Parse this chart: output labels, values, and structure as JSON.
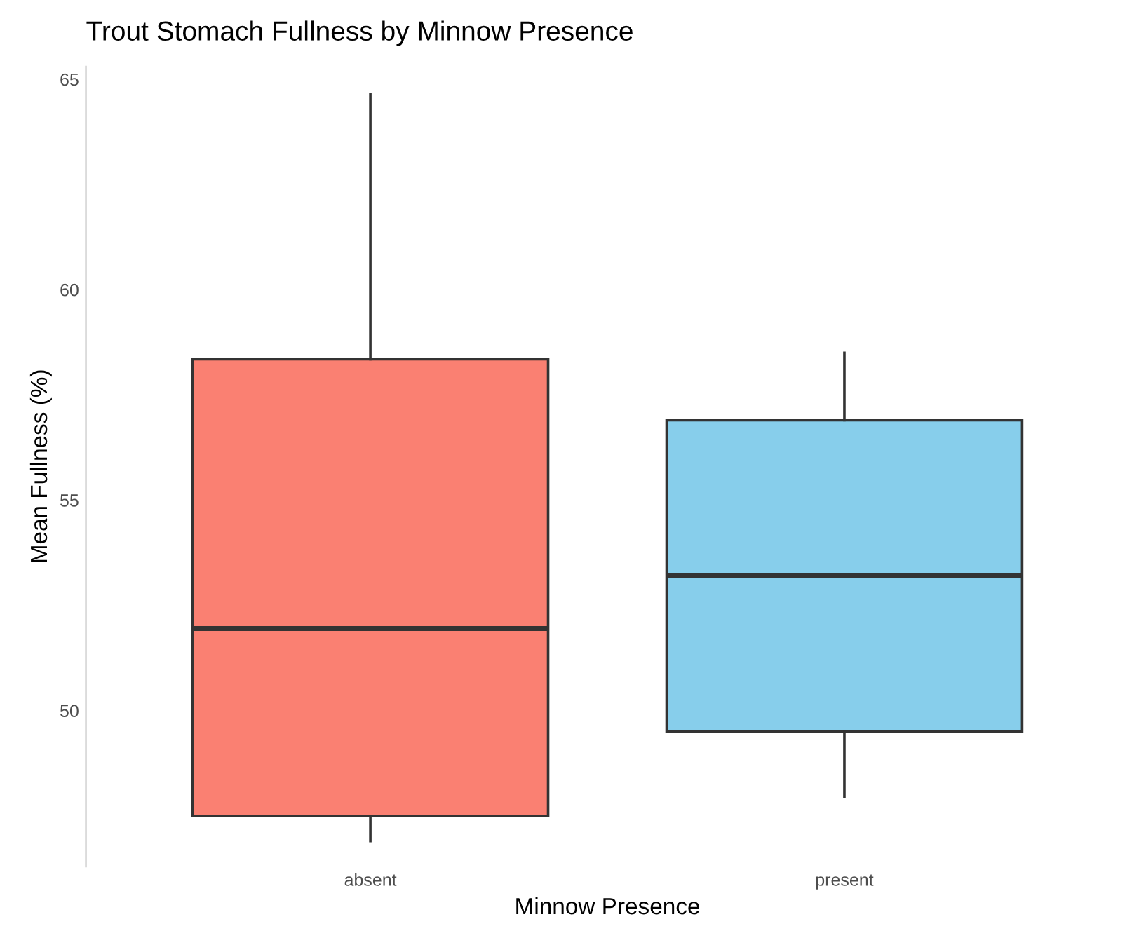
{
  "chart_data": {
    "type": "box",
    "title": "Trout Stomach Fullness by Minnow Presence",
    "xlabel": "Minnow Presence",
    "ylabel": "Mean Fullness (%)",
    "categories": [
      "absent",
      "present"
    ],
    "colors": [
      "#fa8072",
      "#87ceeb"
    ],
    "boxes": [
      {
        "low": 46.9,
        "q1": 47.5,
        "median": 51.95,
        "q3": 58.35,
        "high": 64.65
      },
      {
        "low": 47.95,
        "q1": 49.5,
        "median": 53.2,
        "q3": 56.9,
        "high": 58.5
      }
    ],
    "ylim": [
      46.3,
      65.3
    ],
    "yticks": [
      50,
      55,
      60,
      65
    ],
    "grid": false
  }
}
